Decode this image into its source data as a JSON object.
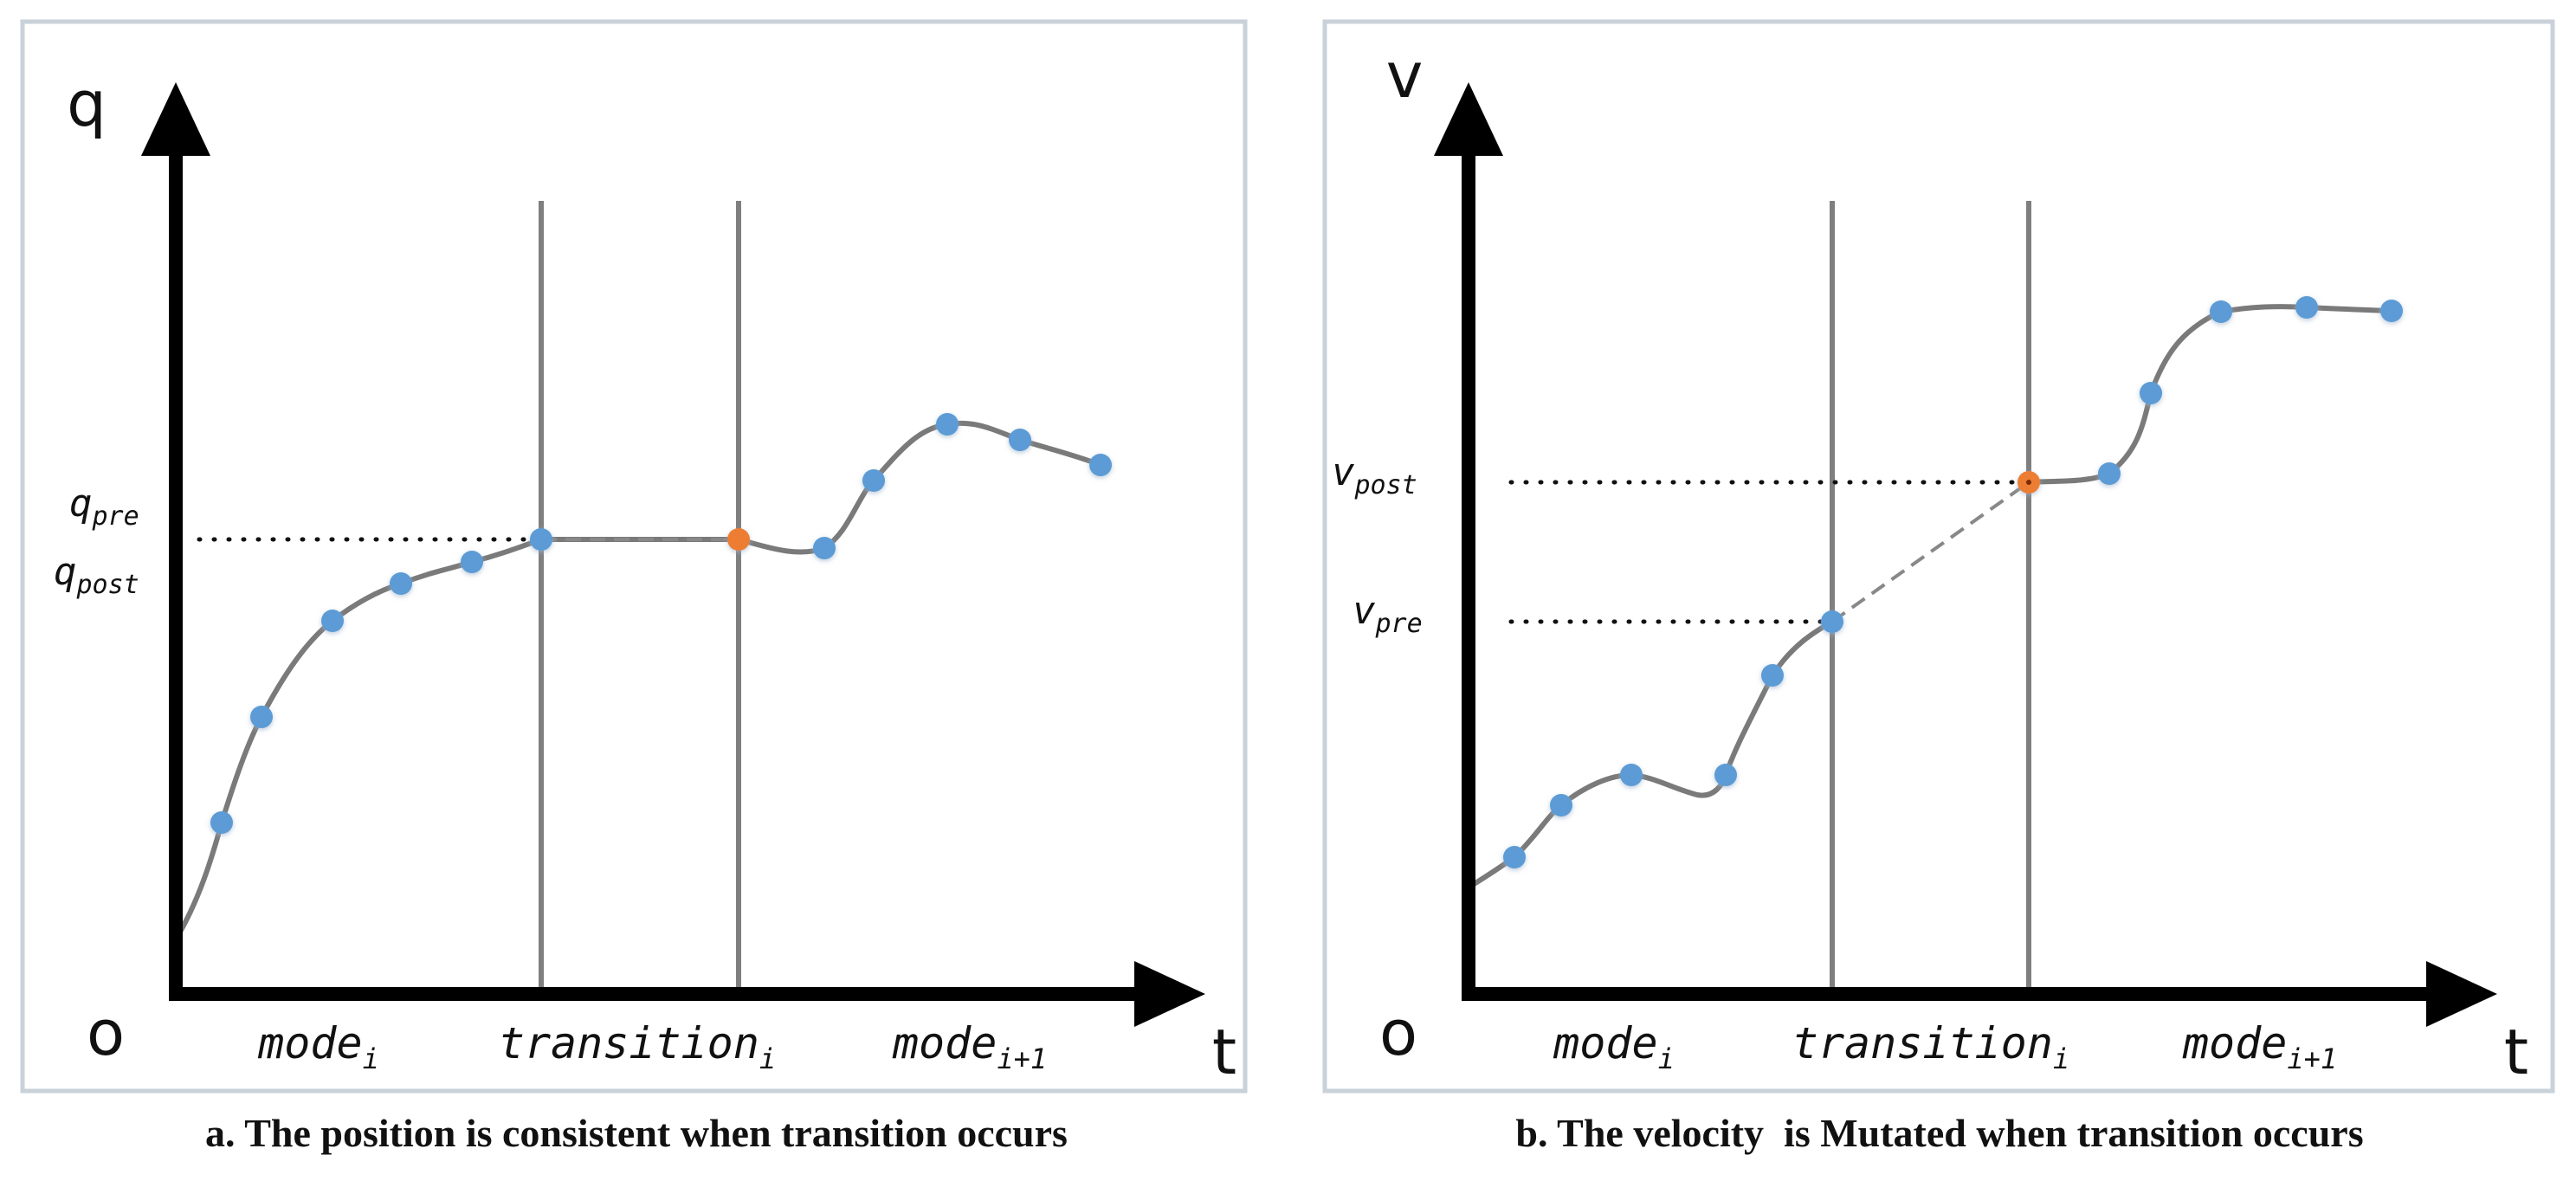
{
  "panels": [
    {
      "id": "a",
      "y_axis_label": "q",
      "x_axis_label": "t",
      "origin_label": "o",
      "regions": [
        {
          "base": "mode",
          "sub": "i"
        },
        {
          "base": "transition",
          "sub": "i"
        },
        {
          "base": "mode",
          "sub": "i+1"
        }
      ],
      "value_labels": [
        {
          "base": "q",
          "sub": "pre"
        },
        {
          "base": "q",
          "sub": "post"
        }
      ],
      "caption": "a. The position is consistent when transition occurs"
    },
    {
      "id": "b",
      "y_axis_label": "v",
      "x_axis_label": "t",
      "origin_label": "o",
      "regions": [
        {
          "base": "mode",
          "sub": "i"
        },
        {
          "base": "transition",
          "sub": "i"
        },
        {
          "base": "mode",
          "sub": "i+1"
        }
      ],
      "value_labels": [
        {
          "base": "v",
          "sub": "post"
        },
        {
          "base": "v",
          "sub": "pre"
        }
      ],
      "caption": "b. The velocity  is Mutated when transition occurs"
    }
  ],
  "colors": {
    "frame": "#c9d1d9",
    "axis": "#000000",
    "curve": "#7a7a7a",
    "divider": "#7f7f7f",
    "sample_point": "#5b9bd5",
    "transition_point": "#ed7d31"
  },
  "icons": [
    "arrow-up-icon",
    "arrow-right-icon"
  ]
}
